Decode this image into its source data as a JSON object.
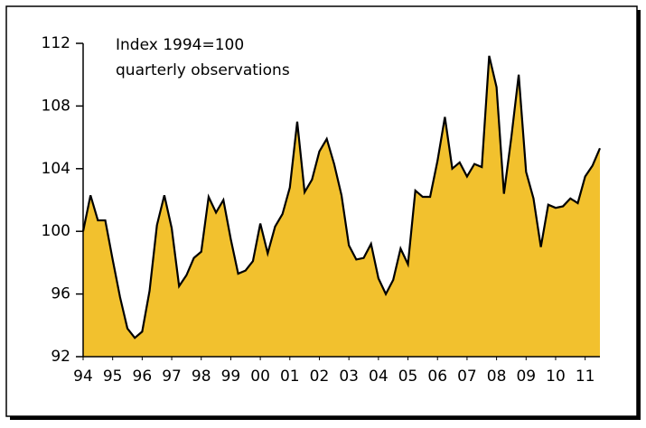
{
  "chart_data": {
    "type": "area",
    "annotation": [
      "Index 1994=100",
      "quarterly observations"
    ],
    "x": [
      1994,
      1994.25,
      1994.5,
      1994.75,
      1995,
      1995.25,
      1995.5,
      1995.75,
      1996,
      1996.25,
      1996.5,
      1996.75,
      1997,
      1997.25,
      1997.5,
      1997.75,
      1998,
      1998.25,
      1998.5,
      1998.75,
      1999,
      1999.25,
      1999.5,
      1999.75,
      2000,
      2000.25,
      2000.5,
      2000.75,
      2001,
      2001.25,
      2001.5,
      2001.75,
      2002,
      2002.25,
      2002.5,
      2002.75,
      2003,
      2003.25,
      2003.5,
      2003.75,
      2004,
      2004.25,
      2004.5,
      2004.75,
      2005,
      2005.25,
      2005.5,
      2005.75,
      2006,
      2006.25,
      2006.5,
      2006.75,
      2007,
      2007.25,
      2007.5,
      2007.75,
      2008,
      2008.25,
      2008.5,
      2008.75,
      2009,
      2009.25,
      2009.5,
      2009.75,
      2010,
      2010.25,
      2010.5,
      2010.75,
      2011,
      2011.25,
      2011.5
    ],
    "values": [
      100,
      102.3,
      100.7,
      100.7,
      98.2,
      95.8,
      93.8,
      93.2,
      93.6,
      96.2,
      100.4,
      102.3,
      100.2,
      96.5,
      97.2,
      98.3,
      98.7,
      102.2,
      101.2,
      102.0,
      99.5,
      97.3,
      97.5,
      98.1,
      100.5,
      98.6,
      100.3,
      101.1,
      102.8,
      107.0,
      102.5,
      103.3,
      105.1,
      105.9,
      104.3,
      102.3,
      99.1,
      98.2,
      98.3,
      99.2,
      97.0,
      96.0,
      96.9,
      98.9,
      97.9,
      102.6,
      102.2,
      102.2,
      104.5,
      107.3,
      104.0,
      104.4,
      103.5,
      104.3,
      104.1,
      111.2,
      109.2,
      102.4,
      106.0,
      110.0,
      103.8,
      102.1,
      99.0,
      101.7,
      101.5,
      101.6,
      102.1,
      101.8,
      103.5,
      104.2,
      105.3
    ],
    "color": "#f2c12e",
    "line_color": "#000000",
    "xlim": [
      1994,
      2011.5
    ],
    "xticks": [
      {
        "value": 1994,
        "label": "94"
      },
      {
        "value": 1995,
        "label": "95"
      },
      {
        "value": 1996,
        "label": "96"
      },
      {
        "value": 1997,
        "label": "97"
      },
      {
        "value": 1998,
        "label": "98"
      },
      {
        "value": 1999,
        "label": "99"
      },
      {
        "value": 2000,
        "label": "00"
      },
      {
        "value": 2001,
        "label": "01"
      },
      {
        "value": 2002,
        "label": "02"
      },
      {
        "value": 2003,
        "label": "03"
      },
      {
        "value": 2004,
        "label": "04"
      },
      {
        "value": 2005,
        "label": "05"
      },
      {
        "value": 2006,
        "label": "06"
      },
      {
        "value": 2007,
        "label": "07"
      },
      {
        "value": 2008,
        "label": "08"
      },
      {
        "value": 2009,
        "label": "09"
      },
      {
        "value": 2010,
        "label": "10"
      },
      {
        "value": 2011,
        "label": "11"
      }
    ],
    "ylim": [
      92,
      112
    ],
    "yticks": [
      92,
      96,
      100,
      104,
      108,
      112
    ]
  }
}
